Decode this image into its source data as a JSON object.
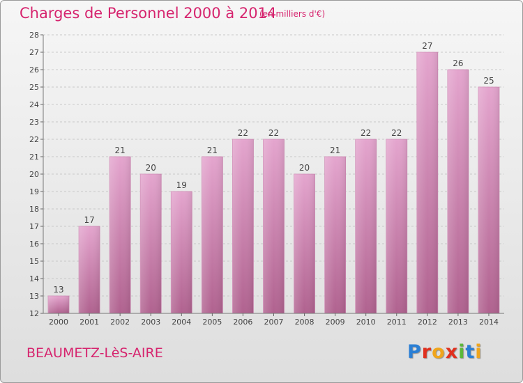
{
  "header": {
    "title": "Charges de Personnel 2000 à 2014",
    "subtitle": "(en milliers d'€)"
  },
  "footer": {
    "city": "BEAUMETZ-LèS-AIRE",
    "logo_text": "Proxiti",
    "logo_colors": [
      "#2b7fd4",
      "#e0301e",
      "#f0a51c",
      "#e0301e",
      "#5cb83a",
      "#2b7fd4",
      "#f0a51c"
    ]
  },
  "colors": {
    "accent": "#d6246e",
    "bar_top": "#e4a5ce",
    "bar_bottom": "#b0628f",
    "bar_edge": "#cf8ab5"
  },
  "chart_data": {
    "type": "bar",
    "title": "Charges de Personnel 2000 à 2014",
    "subtitle": "(en milliers d'€)",
    "categories": [
      "2000",
      "2001",
      "2002",
      "2003",
      "2004",
      "2005",
      "2006",
      "2007",
      "2008",
      "2009",
      "2010",
      "2011",
      "2012",
      "2013",
      "2014"
    ],
    "values": [
      13,
      17,
      21,
      20,
      19,
      21,
      22,
      22,
      20,
      21,
      22,
      22,
      27,
      26,
      25
    ],
    "ylim": [
      12,
      28
    ],
    "yticks": [
      12,
      13,
      14,
      15,
      16,
      17,
      18,
      19,
      20,
      21,
      22,
      23,
      24,
      25,
      26,
      27,
      28
    ],
    "grid": true,
    "legend": "none"
  }
}
